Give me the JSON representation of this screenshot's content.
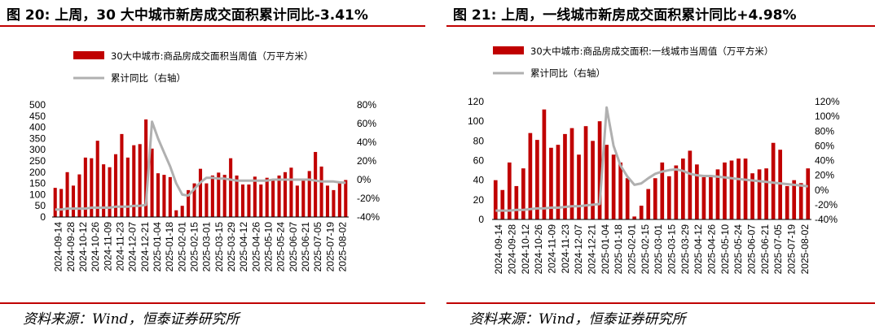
{
  "source_text": "资料来源：Wind，恒泰证券研究所",
  "chart_data": [
    {
      "type": "bar",
      "title": "图 20: 上周，30 大中城市新房成交面积累计同比-3.41%",
      "legend_bar": "30大中城市:商品房成交面积当周值（万平方米）",
      "legend_line": "累计同比（右轴）",
      "colors": {
        "bar": "#c00000",
        "line": "#b0b0b0"
      },
      "y_left": {
        "min": 0,
        "max": 500,
        "ticks": [
          "500",
          "450",
          "400",
          "350",
          "300",
          "250",
          "200",
          "150",
          "100",
          "50",
          "0"
        ]
      },
      "y_right": {
        "min": -40,
        "max": 80,
        "ticks": [
          "80%",
          "60%",
          "40%",
          "20%",
          "0%",
          "-20%",
          "-40%"
        ]
      },
      "x_tick_labels": [
        "2024-09-14",
        "2024-09-28",
        "2024-10-12",
        "2024-10-26",
        "2024-11-09",
        "2024-11-23",
        "2024-12-07",
        "2024-12-21",
        "2025-01-04",
        "2025-01-18",
        "2025-02-01",
        "2025-02-15",
        "2025-03-01",
        "2025-03-15",
        "2025-03-29",
        "2025-04-12",
        "2025-04-26",
        "2025-05-10",
        "2025-05-24",
        "2025-06-07",
        "2025-06-21",
        "2025-07-05",
        "2025-07-19",
        "2025-08-02"
      ],
      "values": [
        130,
        125,
        200,
        140,
        190,
        265,
        262,
        340,
        235,
        222,
        280,
        370,
        265,
        320,
        325,
        435,
        305,
        195,
        188,
        178,
        30,
        50,
        120,
        150,
        215,
        150,
        185,
        198,
        188,
        262,
        185,
        145,
        145,
        180,
        145,
        175,
        165,
        185,
        200,
        220,
        140,
        170,
        205,
        290,
        225,
        140,
        120,
        150,
        165
      ],
      "yoy": [
        -32,
        -32,
        -31,
        -31,
        -31,
        -31,
        -30,
        -30,
        -30,
        -30,
        -29,
        -29,
        -29,
        -28,
        -28,
        -27,
        62,
        44,
        29,
        14,
        -4,
        -16,
        -17,
        -10,
        -3,
        2,
        2,
        1,
        1,
        0,
        -1,
        -1,
        -1,
        -1,
        -1,
        -1,
        0,
        0,
        0,
        0,
        0,
        0,
        0,
        -1,
        -2,
        -2,
        -2,
        -3,
        -3.41
      ]
    },
    {
      "type": "bar",
      "title": "图 21: 上周，一线城市新房成交面积累计同比+4.98%",
      "legend_bar": "30大中城市:商品房成交面积:一线城市当周值（万平方米）",
      "legend_line": "累计同比（右轴）",
      "colors": {
        "bar": "#c00000",
        "line": "#b0b0b0"
      },
      "y_left": {
        "min": 0,
        "max": 120,
        "ticks": [
          "120",
          "100",
          "80",
          "60",
          "40",
          "20",
          "0"
        ]
      },
      "y_right": {
        "min": -40,
        "max": 120,
        "ticks": [
          "120%",
          "100%",
          "80%",
          "60%",
          "40%",
          "20%",
          "0%",
          "-20%",
          "-40%"
        ]
      },
      "x_tick_labels": [
        "2024-09-14",
        "2024-09-28",
        "2024-10-12",
        "2024-10-26",
        "2024-11-09",
        "2024-11-23",
        "2024-12-07",
        "2024-12-21",
        "2025-01-04",
        "2025-01-18",
        "2025-02-01",
        "2025-02-15",
        "2025-03-01",
        "2025-03-15",
        "2025-03-29",
        "2025-04-12",
        "2025-04-26",
        "2025-05-10",
        "2025-05-24",
        "2025-06-07",
        "2025-06-21",
        "2025-07-05",
        "2025-07-19",
        "2025-08-02"
      ],
      "values": [
        40,
        30,
        58,
        34,
        52,
        88,
        81,
        112,
        73,
        76,
        87,
        93,
        66,
        95,
        80,
        100,
        76,
        66,
        58,
        42,
        3,
        14,
        31,
        42,
        58,
        44,
        55,
        62,
        70,
        56,
        43,
        45,
        51,
        58,
        60,
        62,
        62,
        47,
        51,
        52,
        78,
        71,
        34,
        40,
        37,
        52
      ],
      "yoy": [
        -28,
        -28,
        -28,
        -27,
        -27,
        -26,
        -25,
        -25,
        -24,
        -24,
        -23,
        -22,
        -22,
        -21,
        -20,
        -19,
        112,
        60,
        33,
        18,
        7,
        9,
        16,
        22,
        25,
        27,
        28,
        26,
        22,
        20,
        19,
        19,
        18,
        17,
        16,
        15,
        14,
        13,
        12,
        11,
        10,
        9,
        8,
        7,
        6,
        4.98
      ]
    }
  ]
}
